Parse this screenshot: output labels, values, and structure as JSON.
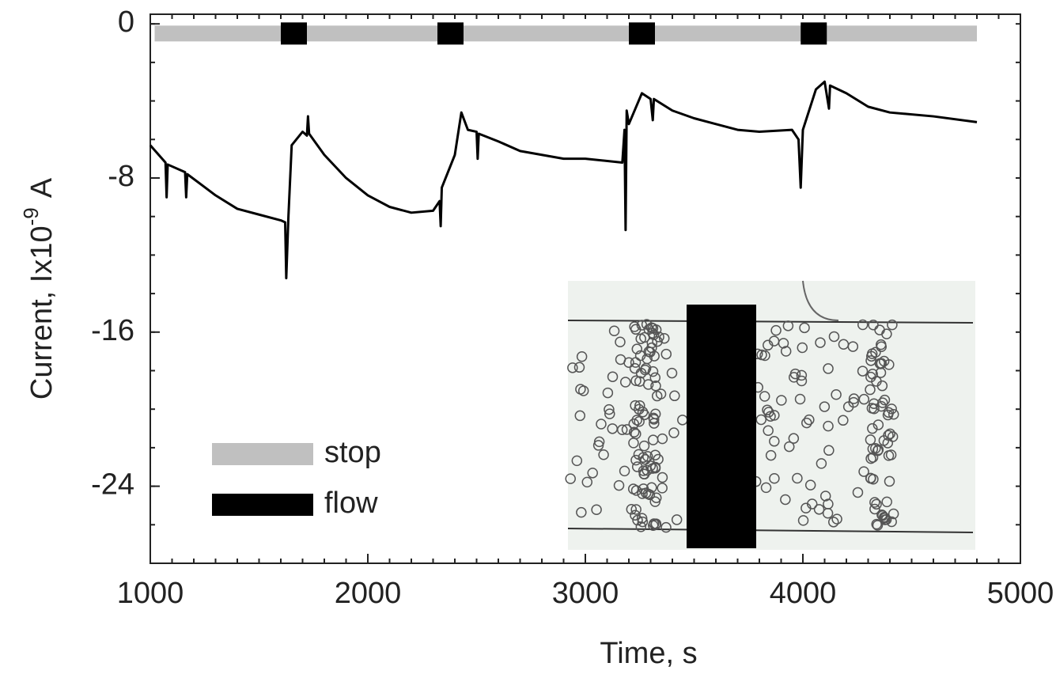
{
  "chart_data": {
    "type": "line",
    "xlabel": "Time, s",
    "ylabel": "Current, Ix10",
    "ylabel_exponent": "-9",
    "ylabel_unit": "A",
    "xlim": [
      1000,
      5000
    ],
    "ylim": [
      -28,
      0.5
    ],
    "xticks": [
      1000,
      2000,
      3000,
      4000,
      5000
    ],
    "yticks": [
      0,
      -8,
      -16,
      -24
    ],
    "series": [
      {
        "color": "#000000",
        "x": [
          1000,
          1070,
          1075,
          1080,
          1160,
          1165,
          1170,
          1300,
          1400,
          1500,
          1600,
          1620,
          1625,
          1635,
          1650,
          1700,
          1720,
          1725,
          1730,
          1800,
          1900,
          2000,
          2100,
          2200,
          2300,
          2330,
          2335,
          2340,
          2400,
          2430,
          2460,
          2500,
          2505,
          2510,
          2600,
          2700,
          2800,
          2900,
          3000,
          3170,
          3180,
          3185,
          3190,
          3200,
          3260,
          3300,
          3310,
          3315,
          3400,
          3500,
          3600,
          3700,
          3800,
          3950,
          3980,
          3990,
          4000,
          4060,
          4100,
          4120,
          4125,
          4200,
          4300,
          4400,
          4600,
          4800
        ],
        "values": [
          -6.3,
          -7.2,
          -9.0,
          -7.3,
          -7.7,
          -9.0,
          -7.8,
          -8.9,
          -9.6,
          -9.9,
          -10.2,
          -10.3,
          -13.2,
          -10.0,
          -6.3,
          -5.6,
          -5.8,
          -4.8,
          -5.7,
          -6.8,
          -8.0,
          -8.9,
          -9.5,
          -9.8,
          -9.7,
          -9.2,
          -10.5,
          -8.5,
          -6.8,
          -4.6,
          -5.5,
          -5.6,
          -7.0,
          -5.7,
          -6.1,
          -6.6,
          -6.8,
          -7.0,
          -7.0,
          -7.2,
          -5.5,
          -10.7,
          -4.5,
          -5.2,
          -3.6,
          -3.9,
          -5.0,
          -3.9,
          -4.5,
          -4.9,
          -5.2,
          -5.5,
          -5.6,
          -5.5,
          -6.0,
          -8.5,
          -5.5,
          -3.4,
          -3.0,
          -4.4,
          -3.2,
          -3.6,
          -4.3,
          -4.6,
          -4.8,
          -5.1
        ]
      }
    ],
    "legend": [
      {
        "name": "stop",
        "color": "#c0c0c0"
      },
      {
        "name": "flow",
        "color": "#000000"
      }
    ],
    "stop_interval": [
      1020,
      4800
    ],
    "flow_intervals": [
      [
        1600,
        1720
      ],
      [
        2320,
        2440
      ],
      [
        3200,
        3320
      ],
      [
        3990,
        4110
      ]
    ],
    "bar_level": -0.5
  }
}
